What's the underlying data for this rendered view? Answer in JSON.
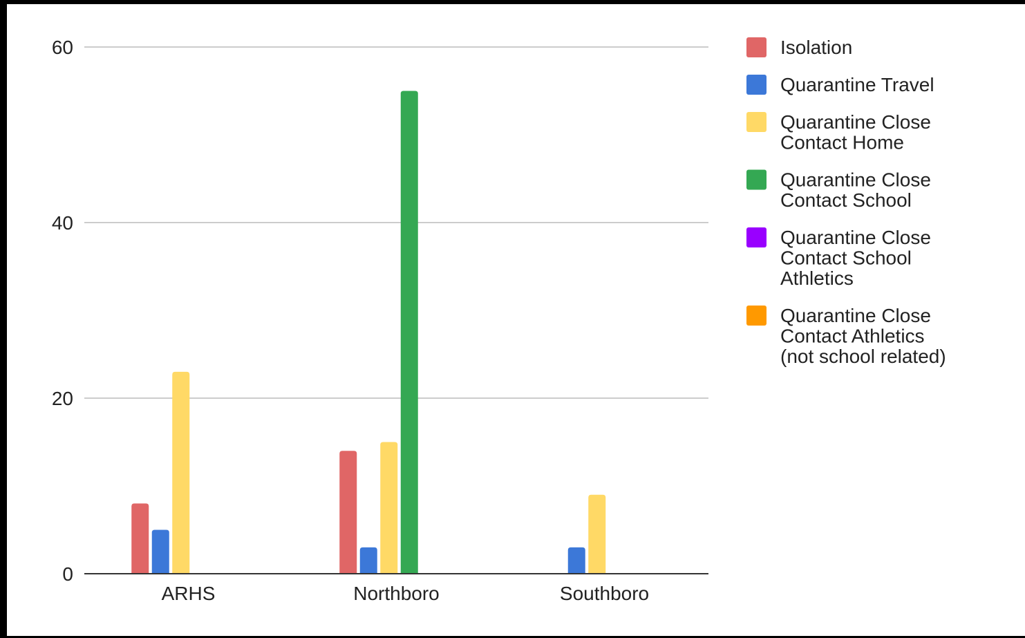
{
  "chart_data": {
    "type": "bar",
    "title": "",
    "xlabel": "",
    "ylabel": "",
    "ylim": [
      0,
      60
    ],
    "yticks": [
      0,
      20,
      40,
      60
    ],
    "grid": true,
    "legend_position": "right",
    "categories": [
      "ARHS",
      "Northboro",
      "Southboro"
    ],
    "series": [
      {
        "name": "Isolation",
        "color": "#e06666",
        "values": [
          8,
          14,
          0
        ]
      },
      {
        "name": "Quarantine Travel",
        "color": "#3c78d8",
        "values": [
          5,
          3,
          3
        ]
      },
      {
        "name": "Quarantine Close Contact Home",
        "color": "#ffd966",
        "values": [
          23,
          15,
          9
        ]
      },
      {
        "name": "Quarantine Close Contact School",
        "color": "#34a853",
        "values": [
          0,
          55,
          0
        ]
      },
      {
        "name": "Quarantine Close Contact School Athletics",
        "color": "#9900ff",
        "values": [
          0,
          0,
          0
        ]
      },
      {
        "name": "Quarantine Close Contact Athletics (not school related)",
        "color": "#ff9900",
        "values": [
          0,
          0,
          0
        ]
      }
    ]
  }
}
